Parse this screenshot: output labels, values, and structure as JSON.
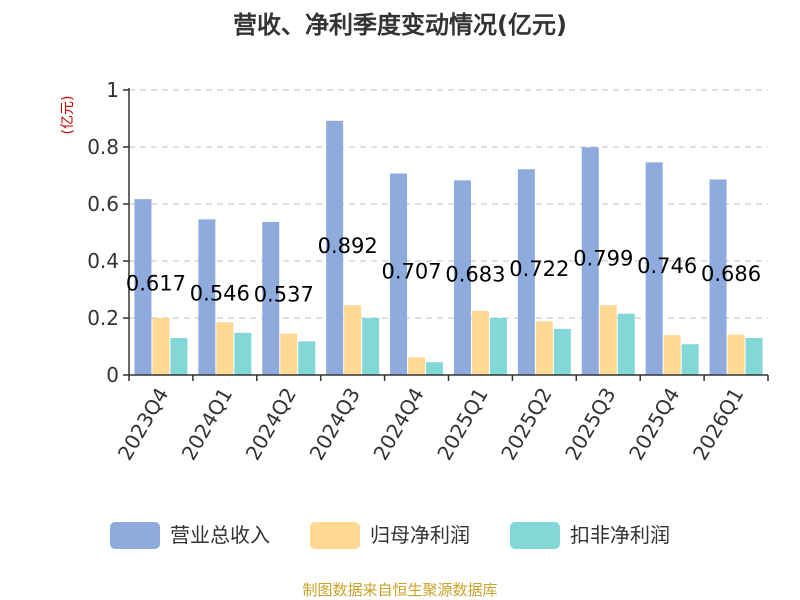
{
  "chart_data": {
    "type": "bar",
    "title": "营收、净利季度变动情况(亿元)",
    "ylabel": "(亿元)",
    "ylim": [
      0,
      1
    ],
    "yticks": [
      "0",
      "0.2",
      "0.4",
      "0.6",
      "0.8",
      "1"
    ],
    "ytick_values": [
      0,
      0.2,
      0.4,
      0.6,
      0.8,
      1
    ],
    "grid": true,
    "legend_position": "bottom",
    "categories": [
      "2023Q4",
      "2024Q1",
      "2024Q2",
      "2024Q3",
      "2024Q4",
      "2025Q1",
      "2025Q2",
      "2025Q3",
      "2025Q4",
      "2026Q1"
    ],
    "series": [
      {
        "name": "营业总收入",
        "color": "#8faadc",
        "values": [
          0.617,
          0.546,
          0.537,
          0.892,
          0.707,
          0.683,
          0.722,
          0.799,
          0.746,
          0.686
        ],
        "labels": [
          "0.617",
          "0.546",
          "0.537",
          "0.892",
          "0.707",
          "0.683",
          "0.722",
          "0.799",
          "0.746",
          "0.686"
        ]
      },
      {
        "name": "归母净利润",
        "color": "#ffd993",
        "values": [
          0.2,
          0.185,
          0.145,
          0.245,
          0.062,
          0.225,
          0.188,
          0.245,
          0.14,
          0.142
        ]
      },
      {
        "name": "扣非净利润",
        "color": "#84d7d7",
        "values": [
          0.13,
          0.148,
          0.118,
          0.2,
          0.045,
          0.2,
          0.162,
          0.215,
          0.108,
          0.13
        ]
      }
    ]
  },
  "colors": {
    "unit_label": "#cc0000",
    "source": "#c9a227"
  },
  "source": "制图数据来自恒生聚源数据库"
}
